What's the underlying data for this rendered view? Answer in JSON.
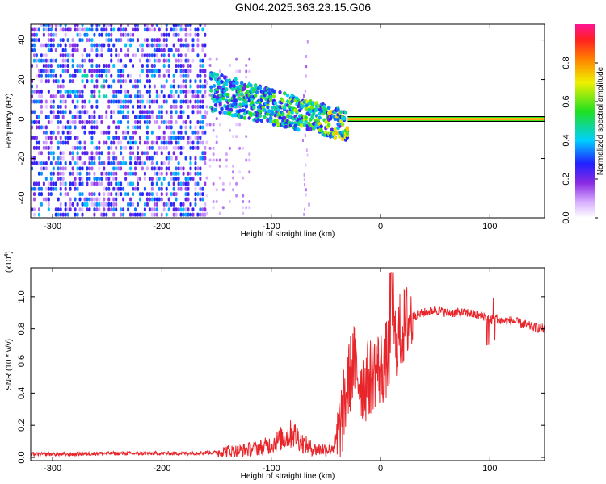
{
  "title": "GN04.2025.363.23.15.G06",
  "chart_data": [
    {
      "type": "heatmap",
      "xlabel": "Height of straight line (km)",
      "ylabel": "Frequency (Hz)",
      "xlim": [
        -320,
        150
      ],
      "ylim": [
        -50,
        48
      ],
      "xticks": [
        -300,
        -200,
        -100,
        0,
        100
      ],
      "yticks": [
        -40,
        -20,
        0,
        20,
        40
      ],
      "grid": false,
      "colorbar": {
        "label": "Normalized spectral amplitude",
        "range": [
          0,
          1
        ],
        "ticks": [
          "0.0",
          "0.2",
          "0.4",
          "0.6",
          "0.8"
        ],
        "tick_values": [
          0,
          0.2,
          0.4,
          0.6,
          0.8
        ],
        "colors": [
          "#ffffff",
          "#d8b0ff",
          "#8a2be2",
          "#2020ff",
          "#00d0ff",
          "#20e020",
          "#f0f000",
          "#ff8000",
          "#ff2020",
          "#ff1493"
        ]
      },
      "features": [
        {
          "description_key": "broadband noise",
          "x_range": [
            -320,
            -160
          ],
          "freq_range": [
            -50,
            48
          ],
          "amplitude": 0.25
        },
        {
          "description_key": "scattered noise",
          "x_range": [
            -160,
            -120
          ],
          "freq_range": [
            -50,
            30
          ],
          "amplitude": 0.1
        },
        {
          "description_key": "converging signal",
          "x_range": [
            -155,
            -30
          ],
          "freq_start": [
            10,
            20
          ],
          "freq_end": [
            -5,
            0
          ],
          "amplitude": 0.45
        },
        {
          "description_key": "narrowband tone",
          "x_range": [
            -30,
            150
          ],
          "freq": 0,
          "amplitude": 0.95
        }
      ]
    },
    {
      "type": "line",
      "xlabel": "Height of straight line (km)",
      "ylabel": "SNR (10 * v/v)",
      "ylabel_scale": "(x10",
      "ylabel_scale_exp": "4",
      "ylabel_scale_close": ")",
      "xlim": [
        -320,
        150
      ],
      "ylim": [
        -0.02,
        1.18
      ],
      "xticks": [
        -300,
        -200,
        -100,
        0,
        100
      ],
      "yticks": [
        "0.0",
        "0.2",
        "0.4",
        "0.6",
        "0.8",
        "1.0"
      ],
      "ytick_values": [
        0,
        0.2,
        0.4,
        0.6,
        0.8,
        1.0
      ],
      "grid": false,
      "color": "#e8252a",
      "series": [
        {
          "x": [
            -320,
            -300,
            -280,
            -260,
            -240,
            -220,
            -200,
            -180,
            -160,
            -150,
            -140,
            -130,
            -120,
            -110,
            -100,
            -90,
            -80,
            -75,
            -70,
            -60,
            -50,
            -45,
            -40,
            -35,
            -30,
            -25,
            -20,
            -15,
            -10,
            -5,
            0,
            5,
            10,
            15,
            20,
            25,
            30,
            40,
            50,
            60,
            70,
            80,
            90,
            95,
            100,
            105,
            110,
            120,
            130,
            140,
            150
          ],
          "y": [
            0.02,
            0.02,
            0.02,
            0.025,
            0.025,
            0.025,
            0.025,
            0.025,
            0.03,
            0.03,
            0.04,
            0.04,
            0.05,
            0.06,
            0.08,
            0.12,
            0.15,
            0.12,
            0.08,
            0.05,
            0.05,
            0.06,
            0.1,
            0.25,
            0.45,
            0.6,
            0.5,
            0.45,
            0.5,
            0.55,
            0.55,
            0.6,
            0.7,
            0.75,
            0.8,
            0.85,
            0.88,
            0.9,
            0.92,
            0.9,
            0.9,
            0.9,
            0.88,
            0.88,
            0.85,
            0.87,
            0.85,
            0.85,
            0.83,
            0.81,
            0.8
          ]
        }
      ]
    }
  ]
}
